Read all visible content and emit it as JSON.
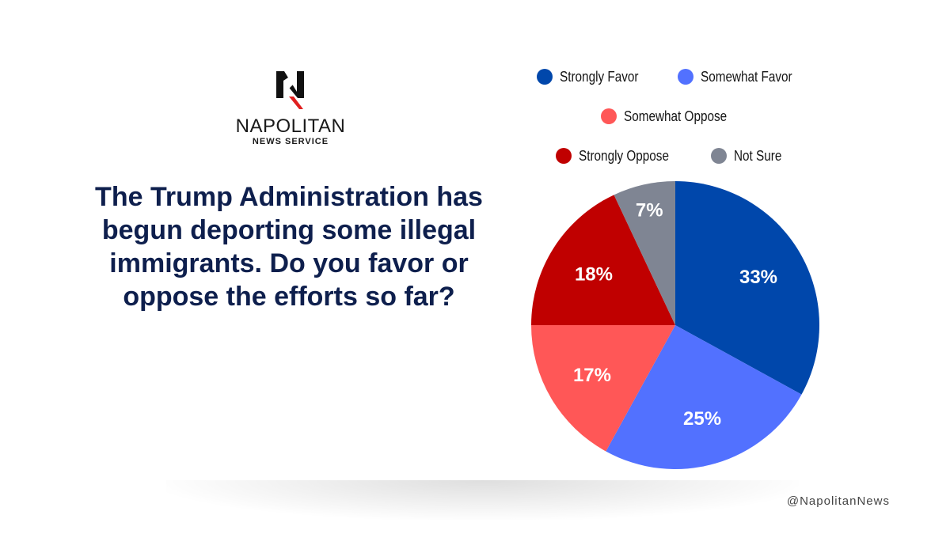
{
  "brand": {
    "name": "NAPOLITAN",
    "subtitle": "NEWS SERVICE",
    "logo_icon": "napolitan-n-logo-icon",
    "colors": {
      "dark": "#111111",
      "accent": "#e02020"
    }
  },
  "question": "The Trump Administration has begun deporting some illegal immigrants. Do you favor or oppose the efforts so far?",
  "footer": {
    "handle": "@NapolitanNews"
  },
  "chart_data": {
    "type": "pie",
    "title": "The Trump Administration has begun deporting some illegal immigrants. Do you favor or oppose the efforts so far?",
    "start_angle": "top",
    "direction": "clockwise",
    "legend_position": "top-right",
    "slices": [
      {
        "label": "Strongly Favor",
        "value": 33,
        "display": "33%",
        "color": "#0047ab"
      },
      {
        "label": "Somewhat Favor",
        "value": 25,
        "display": "25%",
        "color": "#5271ff"
      },
      {
        "label": "Somewhat Oppose",
        "value": 17,
        "display": "17%",
        "color": "#ff5757"
      },
      {
        "label": "Strongly Oppose",
        "value": 18,
        "display": "18%",
        "color": "#c00000"
      },
      {
        "label": "Not Sure",
        "value": 7,
        "display": "7%",
        "color": "#7f8593"
      }
    ]
  }
}
